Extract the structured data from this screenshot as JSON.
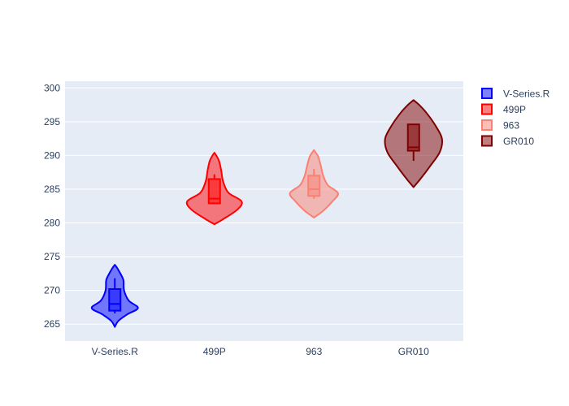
{
  "chart_data": {
    "type": "violin",
    "title": "",
    "xlabel": "",
    "ylabel": "",
    "categories": [
      "V-Series.R",
      "499P",
      "963",
      "GR010"
    ],
    "ylim": [
      262.5,
      301
    ],
    "yticks": [
      265,
      270,
      275,
      280,
      285,
      290,
      295,
      300
    ],
    "grid": true,
    "legend_position": "top-right",
    "series": [
      {
        "name": "V-Series.R",
        "color": "#0000ff",
        "range": [
          264.6,
          273.8
        ],
        "box": {
          "min": 266.6,
          "q1": 267.0,
          "median": 268.0,
          "q3": 270.2,
          "max": 271.8
        },
        "profile": [
          [
            264.6,
            0.0
          ],
          [
            265.5,
            0.12
          ],
          [
            266.5,
            0.42
          ],
          [
            267.4,
            0.75
          ],
          [
            268.5,
            0.45
          ],
          [
            270.0,
            0.3
          ],
          [
            271.5,
            0.28
          ],
          [
            272.5,
            0.18
          ],
          [
            273.3,
            0.08
          ],
          [
            273.8,
            0.0
          ]
        ]
      },
      {
        "name": "499P",
        "color": "#ff0000",
        "range": [
          279.8,
          290.4
        ],
        "box": {
          "min": 282.9,
          "q1": 282.9,
          "median": 283.6,
          "q3": 286.5,
          "max": 287.2
        },
        "profile": [
          [
            279.8,
            0.0
          ],
          [
            280.6,
            0.3
          ],
          [
            282.0,
            0.75
          ],
          [
            283.2,
            0.88
          ],
          [
            284.5,
            0.45
          ],
          [
            286.2,
            0.28
          ],
          [
            287.8,
            0.22
          ],
          [
            289.2,
            0.15
          ],
          [
            290.0,
            0.06
          ],
          [
            290.4,
            0.0
          ]
        ]
      },
      {
        "name": "963",
        "color": "#fa8072",
        "range": [
          280.8,
          290.8
        ],
        "box": {
          "min": 283.6,
          "q1": 284.0,
          "median": 285.0,
          "q3": 287.0,
          "max": 288.0
        },
        "profile": [
          [
            280.8,
            0.0
          ],
          [
            281.8,
            0.3
          ],
          [
            283.2,
            0.6
          ],
          [
            284.4,
            0.78
          ],
          [
            285.6,
            0.45
          ],
          [
            287.0,
            0.3
          ],
          [
            288.5,
            0.22
          ],
          [
            289.8,
            0.14
          ],
          [
            290.4,
            0.06
          ],
          [
            290.8,
            0.0
          ]
        ]
      },
      {
        "name": "GR010",
        "color": "#800000",
        "range": [
          285.3,
          298.2
        ],
        "box": {
          "min": 289.2,
          "q1": 290.7,
          "median": 291.2,
          "q3": 294.6,
          "max": 294.6
        },
        "profile": [
          [
            285.3,
            0.0
          ],
          [
            286.5,
            0.22
          ],
          [
            288.5,
            0.55
          ],
          [
            290.5,
            0.85
          ],
          [
            292.5,
            0.92
          ],
          [
            294.5,
            0.7
          ],
          [
            296.3,
            0.42
          ],
          [
            297.5,
            0.18
          ],
          [
            298.2,
            0.0
          ]
        ]
      }
    ]
  }
}
